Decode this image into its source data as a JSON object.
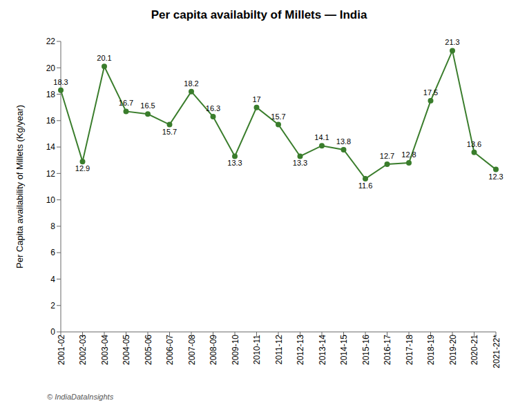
{
  "chart_data": {
    "type": "line",
    "title": "Per capita availabilty of Millets — India",
    "ylabel": "Per Capita availability of Millets (Kg/year)",
    "categories": [
      "2001-02",
      "2002-03",
      "2003-04",
      "2004-05",
      "2005-06",
      "2006-07",
      "2007-08",
      "2008-09",
      "2009-10",
      "2010-11",
      "2011-12",
      "2012-13",
      "2013-14",
      "2014-15",
      "2015-16",
      "2016-17",
      "2017-18",
      "2018-19",
      "2019-20",
      "2020-21",
      "2021-22*"
    ],
    "values": [
      18.3,
      12.9,
      20.1,
      16.7,
      16.5,
      15.7,
      18.2,
      16.3,
      13.3,
      17.0,
      15.7,
      13.3,
      14.1,
      13.8,
      11.6,
      12.7,
      12.8,
      17.5,
      21.3,
      13.6,
      12.3
    ],
    "color": "#3a7d2c",
    "marker": "circle",
    "ylim": [
      0,
      22
    ],
    "yticks": [
      0,
      2,
      4,
      6,
      8,
      10,
      12,
      14,
      16,
      18,
      20,
      22
    ],
    "grid": false,
    "data_labels": true,
    "annotations": [
      "© IndiaDataInsights"
    ]
  }
}
